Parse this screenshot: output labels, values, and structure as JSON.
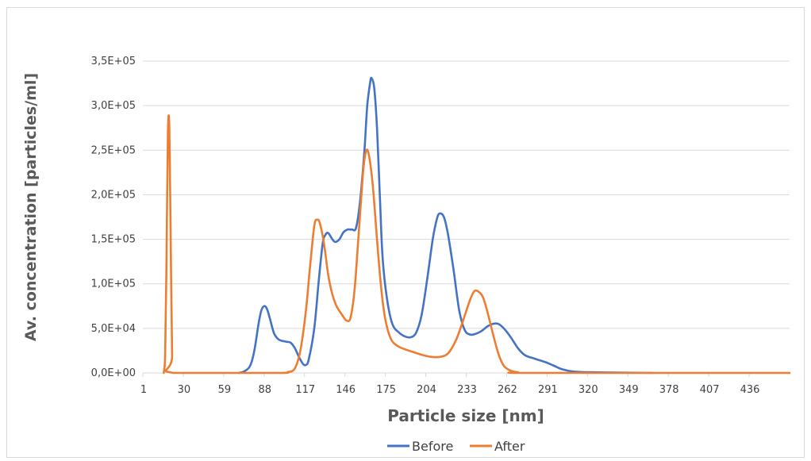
{
  "chart_data": {
    "type": "line",
    "title": "",
    "xlabel": "Particle size [nm]",
    "ylabel": "Av. concentration [particles/ml]",
    "xlim": [
      1,
      465
    ],
    "ylim": [
      0,
      350000
    ],
    "x_ticks": [
      "1",
      "30",
      "59",
      "88",
      "117",
      "146",
      "175",
      "204",
      "233",
      "262",
      "291",
      "320",
      "349",
      "378",
      "407",
      "436"
    ],
    "x_tick_values": [
      1,
      30,
      59,
      88,
      117,
      146,
      175,
      204,
      233,
      262,
      291,
      320,
      349,
      378,
      407,
      436
    ],
    "y_ticks": [
      "0,0E+00",
      "5,0E+04",
      "1,0E+05",
      "1,5E+05",
      "2,0E+05",
      "2,5E+05",
      "3,0E+05",
      "3,5E+05"
    ],
    "y_tick_values": [
      0,
      50000,
      100000,
      150000,
      200000,
      250000,
      300000,
      350000
    ],
    "grid": "horizontal",
    "legend": "bottom",
    "series": [
      {
        "name": "Before",
        "color": "#4472c4",
        "points": [
          [
            70,
            0
          ],
          [
            74,
            2000
          ],
          [
            78,
            8000
          ],
          [
            81,
            25000
          ],
          [
            84,
            55000
          ],
          [
            86,
            70000
          ],
          [
            88,
            75000
          ],
          [
            90,
            72000
          ],
          [
            92,
            62000
          ],
          [
            95,
            45000
          ],
          [
            98,
            38000
          ],
          [
            101,
            36000
          ],
          [
            104,
            35000
          ],
          [
            107,
            34000
          ],
          [
            110,
            28000
          ],
          [
            113,
            18000
          ],
          [
            116,
            10000
          ],
          [
            118,
            9000
          ],
          [
            120,
            15000
          ],
          [
            124,
            50000
          ],
          [
            127,
            100000
          ],
          [
            130,
            145000
          ],
          [
            132,
            155000
          ],
          [
            134,
            157000
          ],
          [
            137,
            150000
          ],
          [
            139,
            147000
          ],
          [
            142,
            150000
          ],
          [
            145,
            158000
          ],
          [
            148,
            161000
          ],
          [
            151,
            161000
          ],
          [
            154,
            163000
          ],
          [
            157,
            195000
          ],
          [
            160,
            250000
          ],
          [
            162,
            300000
          ],
          [
            164,
            325000
          ],
          [
            165,
            331000
          ],
          [
            167,
            320000
          ],
          [
            169,
            275000
          ],
          [
            171,
            200000
          ],
          [
            173,
            130000
          ],
          [
            176,
            85000
          ],
          [
            180,
            55000
          ],
          [
            185,
            45000
          ],
          [
            189,
            41000
          ],
          [
            193,
            40000
          ],
          [
            197,
            45000
          ],
          [
            201,
            65000
          ],
          [
            205,
            105000
          ],
          [
            209,
            150000
          ],
          [
            212,
            173000
          ],
          [
            214,
            179000
          ],
          [
            217,
            175000
          ],
          [
            220,
            155000
          ],
          [
            224,
            115000
          ],
          [
            228,
            70000
          ],
          [
            232,
            48000
          ],
          [
            236,
            43000
          ],
          [
            240,
            44000
          ],
          [
            244,
            47000
          ],
          [
            248,
            52000
          ],
          [
            252,
            55000
          ],
          [
            256,
            55000
          ],
          [
            260,
            50000
          ],
          [
            265,
            40000
          ],
          [
            270,
            28000
          ],
          [
            275,
            20000
          ],
          [
            282,
            16000
          ],
          [
            290,
            12000
          ],
          [
            296,
            8000
          ],
          [
            302,
            4000
          ],
          [
            310,
            1500
          ],
          [
            320,
            800
          ],
          [
            340,
            400
          ],
          [
            367,
            0
          ]
        ]
      },
      {
        "name": "After",
        "color": "#ed7d31",
        "points": [
          [
            16,
            0
          ],
          [
            17,
            20000
          ],
          [
            18,
            130000
          ],
          [
            19,
            270000
          ],
          [
            20,
            275000
          ],
          [
            21,
            150000
          ],
          [
            22,
            20000
          ],
          [
            23,
            0
          ],
          [
            97,
            0
          ],
          [
            105,
            1000
          ],
          [
            110,
            5000
          ],
          [
            114,
            25000
          ],
          [
            118,
            70000
          ],
          [
            121,
            120000
          ],
          [
            124,
            165000
          ],
          [
            126,
            172000
          ],
          [
            128,
            168000
          ],
          [
            131,
            145000
          ],
          [
            134,
            110000
          ],
          [
            137,
            88000
          ],
          [
            140,
            75000
          ],
          [
            144,
            65000
          ],
          [
            147,
            59000
          ],
          [
            150,
            62000
          ],
          [
            153,
            95000
          ],
          [
            156,
            160000
          ],
          [
            159,
            225000
          ],
          [
            161,
            248000
          ],
          [
            163,
            246000
          ],
          [
            166,
            210000
          ],
          [
            169,
            150000
          ],
          [
            172,
            95000
          ],
          [
            175,
            60000
          ],
          [
            179,
            38000
          ],
          [
            184,
            30000
          ],
          [
            190,
            26000
          ],
          [
            196,
            23000
          ],
          [
            202,
            20000
          ],
          [
            208,
            18000
          ],
          [
            214,
            18000
          ],
          [
            220,
            22000
          ],
          [
            226,
            38000
          ],
          [
            231,
            60000
          ],
          [
            236,
            83000
          ],
          [
            239,
            92000
          ],
          [
            242,
            91000
          ],
          [
            245,
            85000
          ],
          [
            248,
            70000
          ],
          [
            252,
            45000
          ],
          [
            256,
            22000
          ],
          [
            260,
            8000
          ],
          [
            265,
            2500
          ],
          [
            270,
            800
          ],
          [
            280,
            0
          ],
          [
            465,
            0
          ]
        ]
      }
    ]
  }
}
